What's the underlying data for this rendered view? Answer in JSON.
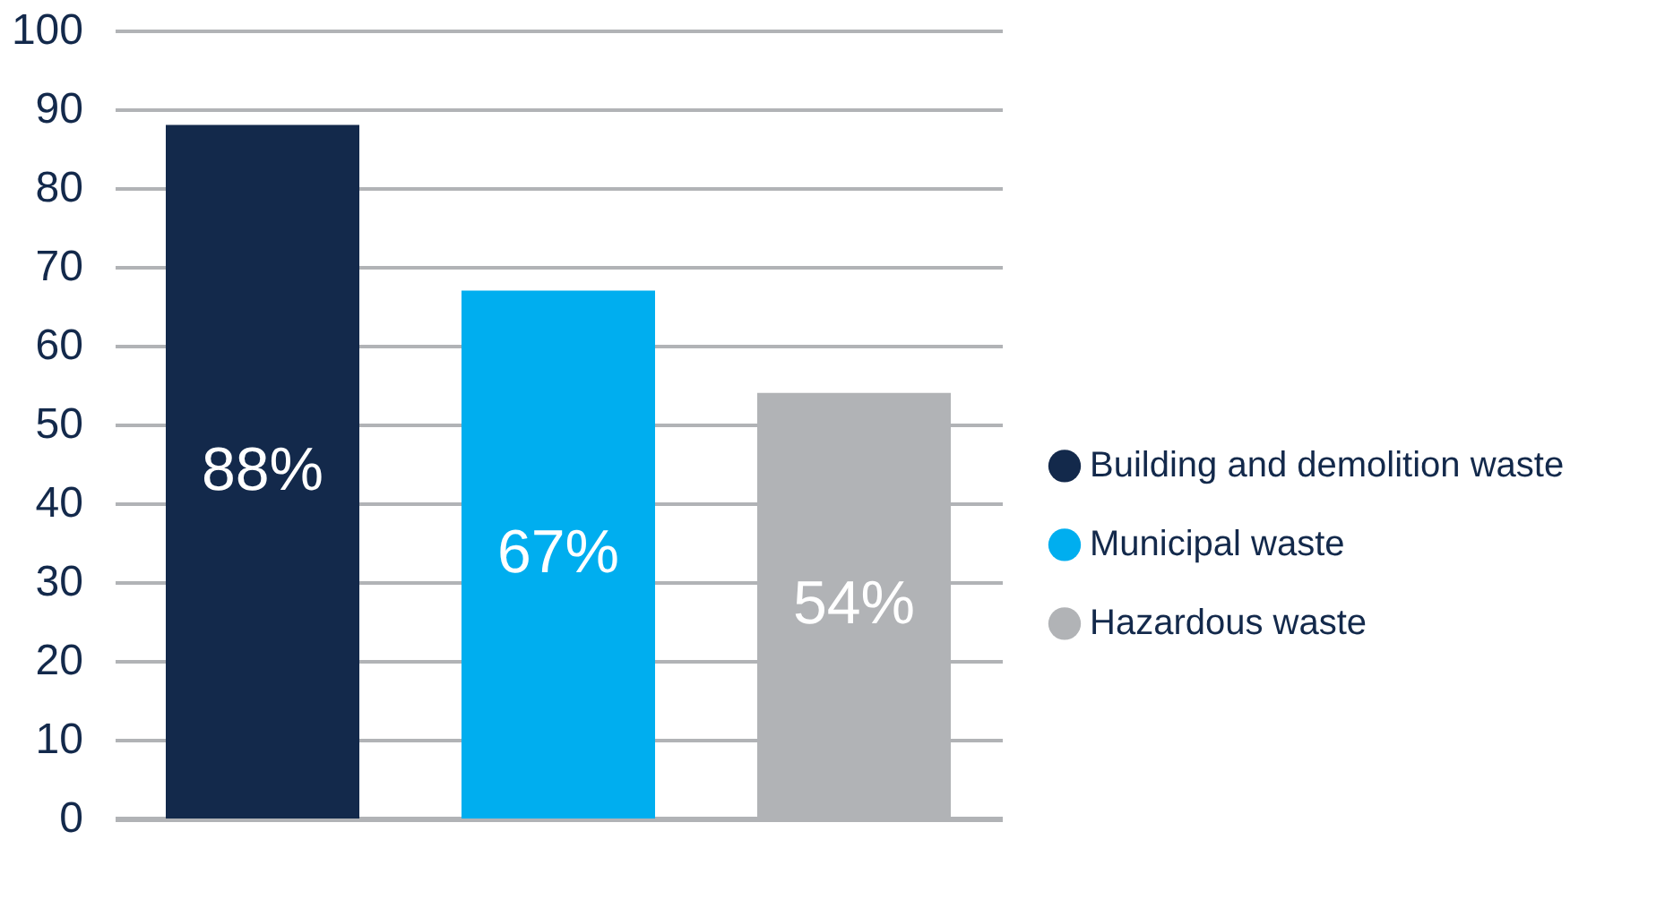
{
  "chart_data": {
    "type": "bar",
    "categories": [
      null,
      null,
      null
    ],
    "series": [
      {
        "name": "Building and demolition waste",
        "color": "#13294b",
        "values": [
          88,
          null,
          null
        ],
        "value_labels": [
          "88%",
          null,
          null
        ]
      },
      {
        "name": "Municipal waste",
        "color": "#00aeef",
        "values": [
          null,
          67,
          null
        ],
        "value_labels": [
          null,
          "67%",
          null
        ]
      },
      {
        "name": "Hazardous waste",
        "color": "#b1b3b6",
        "values": [
          null,
          null,
          54
        ],
        "value_labels": [
          null,
          null,
          "54%"
        ]
      }
    ],
    "ylim": [
      0,
      100
    ],
    "yticks": [
      0,
      10,
      20,
      30,
      40,
      50,
      60,
      70,
      80,
      90,
      100
    ],
    "grid": "y",
    "legend": "right",
    "tick_labels": "y"
  }
}
